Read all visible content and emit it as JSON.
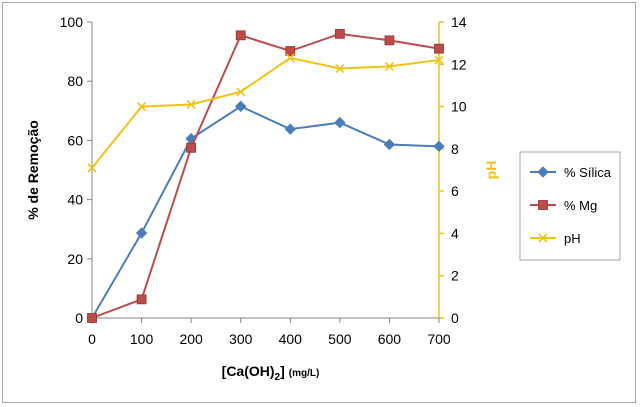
{
  "chart_data": {
    "type": "line",
    "x": [
      0,
      100,
      200,
      300,
      400,
      500,
      600,
      700
    ],
    "xlabel_main": "[Ca(OH)",
    "xlabel_sub": "2",
    "xlabel_close": "]",
    "xlabel_unit": "(mg/L)",
    "ylabel_left": "% de Remoção",
    "ylabel_right": "pH",
    "ylim_left": [
      0,
      100
    ],
    "ylim_right": [
      0,
      14
    ],
    "xticks": [
      0,
      100,
      200,
      300,
      400,
      500,
      600,
      700
    ],
    "yticks_left": [
      0,
      20,
      40,
      60,
      80,
      100
    ],
    "yticks_right": [
      0,
      2,
      4,
      6,
      8,
      10,
      12,
      14
    ],
    "legend_position": "right",
    "grid": false,
    "series": [
      {
        "name": "% Sílica",
        "axis": "left",
        "marker": "diamond",
        "color": "#4a7ebb",
        "values": [
          0,
          28.7,
          60.6,
          71.5,
          63.8,
          66.0,
          58.6,
          58.0
        ]
      },
      {
        "name": "% Mg",
        "axis": "left",
        "marker": "square",
        "color": "#be4b48",
        "values": [
          0,
          6.3,
          57.5,
          95.5,
          90.2,
          96.0,
          93.8,
          91.0
        ]
      },
      {
        "name": "pH",
        "axis": "right",
        "marker": "x",
        "color": "#f2c314",
        "values": [
          7.1,
          10.0,
          10.1,
          10.7,
          12.3,
          11.8,
          11.9,
          12.2
        ]
      }
    ]
  }
}
